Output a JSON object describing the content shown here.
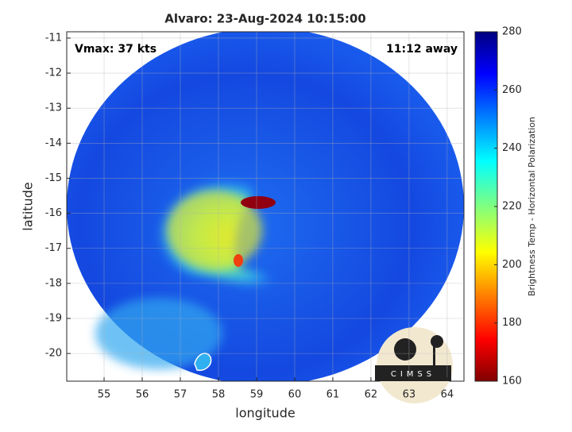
{
  "chart_data": {
    "type": "image",
    "title": "Alvaro: 23-Aug-2024 10:15:00",
    "xlabel": "longitude",
    "ylabel": "latitude",
    "annotations": [
      "Vmax: 37 kts",
      "11:12 away"
    ],
    "logo": "CIMSS",
    "xlim": [
      54.02,
      64.44
    ],
    "ylim": [
      -20.79,
      -10.82
    ],
    "xticks": [
      55,
      56,
      57,
      58,
      59,
      60,
      61,
      62,
      63,
      64
    ],
    "yticks": [
      -20,
      -19,
      -18,
      -17,
      -16,
      -15,
      -14,
      -13,
      -12,
      -11
    ],
    "grid": true,
    "colorbar": {
      "label": "Brightness Temp - Horizontal Polarization",
      "lim": [
        160,
        280
      ],
      "ticks": [
        160,
        180,
        200,
        220,
        240,
        260,
        280
      ],
      "colormap": "jet"
    }
  }
}
